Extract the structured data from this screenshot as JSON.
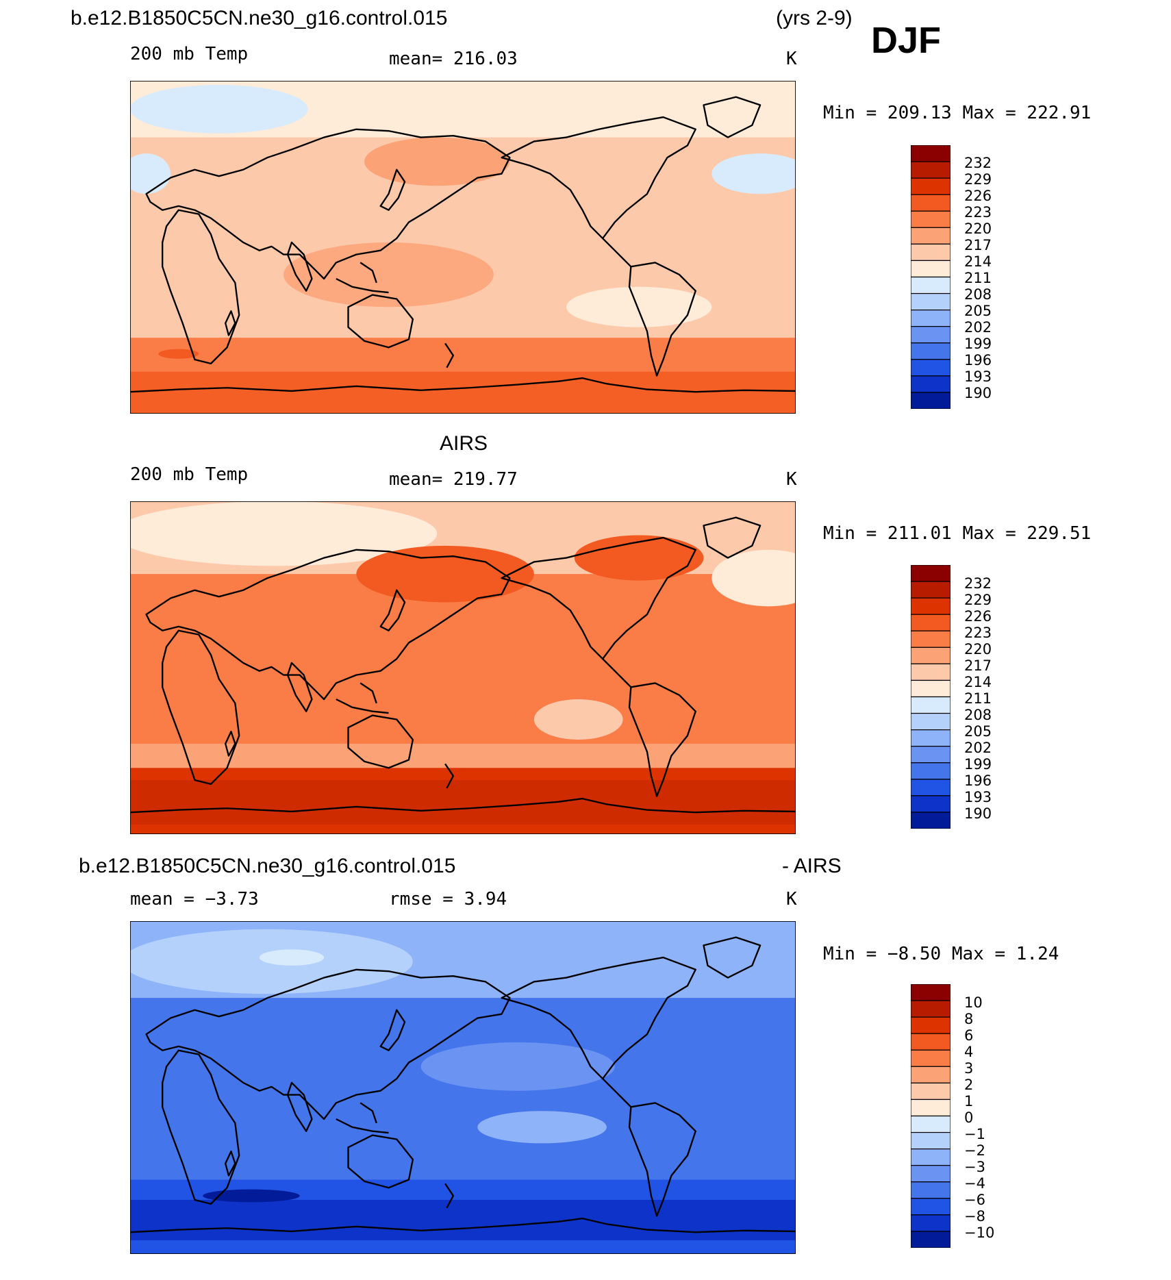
{
  "header": {
    "case_name": "b.e12.B1850C5CN.ne30_g16.control.015",
    "years": "(yrs 2-9)",
    "season": "DJF"
  },
  "panels": [
    {
      "id": "model",
      "title": "",
      "variable": "200 mb Temp",
      "stat": "mean=  216.03",
      "units": "K",
      "minmax": "Min  =  209.13  Max  =  222.91",
      "colorbar_labels": [
        "232",
        "229",
        "226",
        "223",
        "220",
        "217",
        "214",
        "211",
        "208",
        "205",
        "202",
        "199",
        "196",
        "193",
        "190"
      ]
    },
    {
      "id": "obs",
      "title": "AIRS",
      "variable": "200 mb Temp",
      "stat": "mean=  219.77",
      "units": "K",
      "minmax": "Min  =  211.01  Max  =  229.51",
      "colorbar_labels": [
        "232",
        "229",
        "226",
        "223",
        "220",
        "217",
        "214",
        "211",
        "208",
        "205",
        "202",
        "199",
        "196",
        "193",
        "190"
      ]
    },
    {
      "id": "diff",
      "title_left": "b.e12.B1850C5CN.ne30_g16.control.015",
      "title_right": "- AIRS",
      "stat_left": "mean  =    −3.73",
      "stat_mid": "rmse  =     3.94",
      "units": "K",
      "minmax": "Min  =    −8.50  Max  =     1.24",
      "colorbar_labels": [
        "10",
        "8",
        "6",
        "4",
        "3",
        "2",
        "1",
        "0",
        "−1",
        "−2",
        "−3",
        "−4",
        "−6",
        "−8",
        "−10"
      ]
    }
  ],
  "colors": {
    "scale": [
      "#8b0000",
      "#b71c00",
      "#dc3300",
      "#f25a21",
      "#fa7c46",
      "#fba377",
      "#fdc9ab",
      "#feebd8",
      "#d8ebfd",
      "#b4d1fb",
      "#8fb3f8",
      "#6a93f2",
      "#4575eb",
      "#2153e4",
      "#0d33c8",
      "#021c99",
      "#00007e"
    ]
  }
}
